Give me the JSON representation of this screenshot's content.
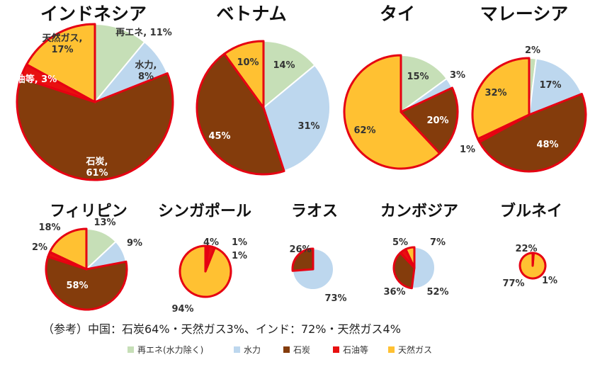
{
  "colors": {
    "renewable": "#c6dfb7",
    "hydro": "#bdd7ee",
    "coal": "#843c0c",
    "oil": "#e81010",
    "gas": "#ffc132",
    "highlight": "#e60012",
    "separator": "#ffffff"
  },
  "chart_data": {
    "type": "pie",
    "note": "（参考）中国：石炭64%・天然ガス3%、インド：72%・天然ガス4%",
    "legend": [
      "再エネ(水力除く)",
      "水力",
      "石炭",
      "石油等",
      "天然ガス"
    ],
    "charts": [
      {
        "title": "インドネシア",
        "values": {
          "renewable": 11,
          "hydro": 8,
          "coal": 61,
          "oil": 3,
          "gas": 17
        },
        "labels": {
          "renewable": "再エネ, 11%",
          "hydro": "水力,|8%",
          "coal": "石炭,|61%",
          "oil": "石油等, 3%",
          "gas": "天然ガス,|17%"
        }
      },
      {
        "title": "ベトナム",
        "values": {
          "renewable": 14,
          "hydro": 31,
          "coal": 45,
          "oil": 0,
          "gas": 10
        },
        "labels": {
          "renewable": "14%",
          "hydro": "31%",
          "coal": "45%",
          "gas": "10%"
        }
      },
      {
        "title": "タイ",
        "values": {
          "renewable": 15,
          "hydro": 3,
          "coal": 20,
          "oil": 0,
          "gas": 62
        },
        "labels": {
          "renewable": "15%",
          "hydro": "3%",
          "coal": "20%",
          "gas": "62%"
        }
      },
      {
        "title": "マレーシア",
        "values": {
          "renewable": 2,
          "hydro": 17,
          "coal": 48,
          "oil": 1,
          "gas": 32
        },
        "labels": {
          "renewable": "2%",
          "hydro": "17%",
          "coal": "48%",
          "oil": "1%",
          "gas": "32%"
        }
      },
      {
        "title": "フィリピン",
        "values": {
          "renewable": 13,
          "hydro": 9,
          "coal": 58,
          "oil": 2,
          "gas": 18
        },
        "labels": {
          "renewable": "13%",
          "hydro": "9%",
          "coal": "58%",
          "oil": "2%",
          "gas": "18%"
        }
      },
      {
        "title": "シンガポール",
        "values": {
          "renewable": 1,
          "hydro": 0,
          "coal": 1,
          "oil": 4,
          "gas": 94
        },
        "labels": {
          "renewable": "1%",
          "coal": "1%",
          "oil": "4%",
          "gas": "94%"
        }
      },
      {
        "title": "ラオス",
        "values": {
          "renewable": 0,
          "hydro": 73,
          "coal": 26,
          "oil": 0,
          "gas": 0
        },
        "labels": {
          "hydro": "73%",
          "coal": "26%"
        }
      },
      {
        "title": "カンボジア",
        "values": {
          "renewable": 0,
          "hydro": 52,
          "coal": 36,
          "oil": 5,
          "gas": 7
        },
        "labels": {
          "hydro": "52%",
          "coal": "36%",
          "oil": "5%",
          "gas": "7%"
        }
      },
      {
        "title": "ブルネイ",
        "values": {
          "renewable": 0,
          "hydro": 0,
          "coal": 0,
          "oil": 1,
          "gas": 77
        },
        "labels": {
          "oil": "1%",
          "gas": "77%",
          "other": "22%"
        }
      }
    ]
  }
}
